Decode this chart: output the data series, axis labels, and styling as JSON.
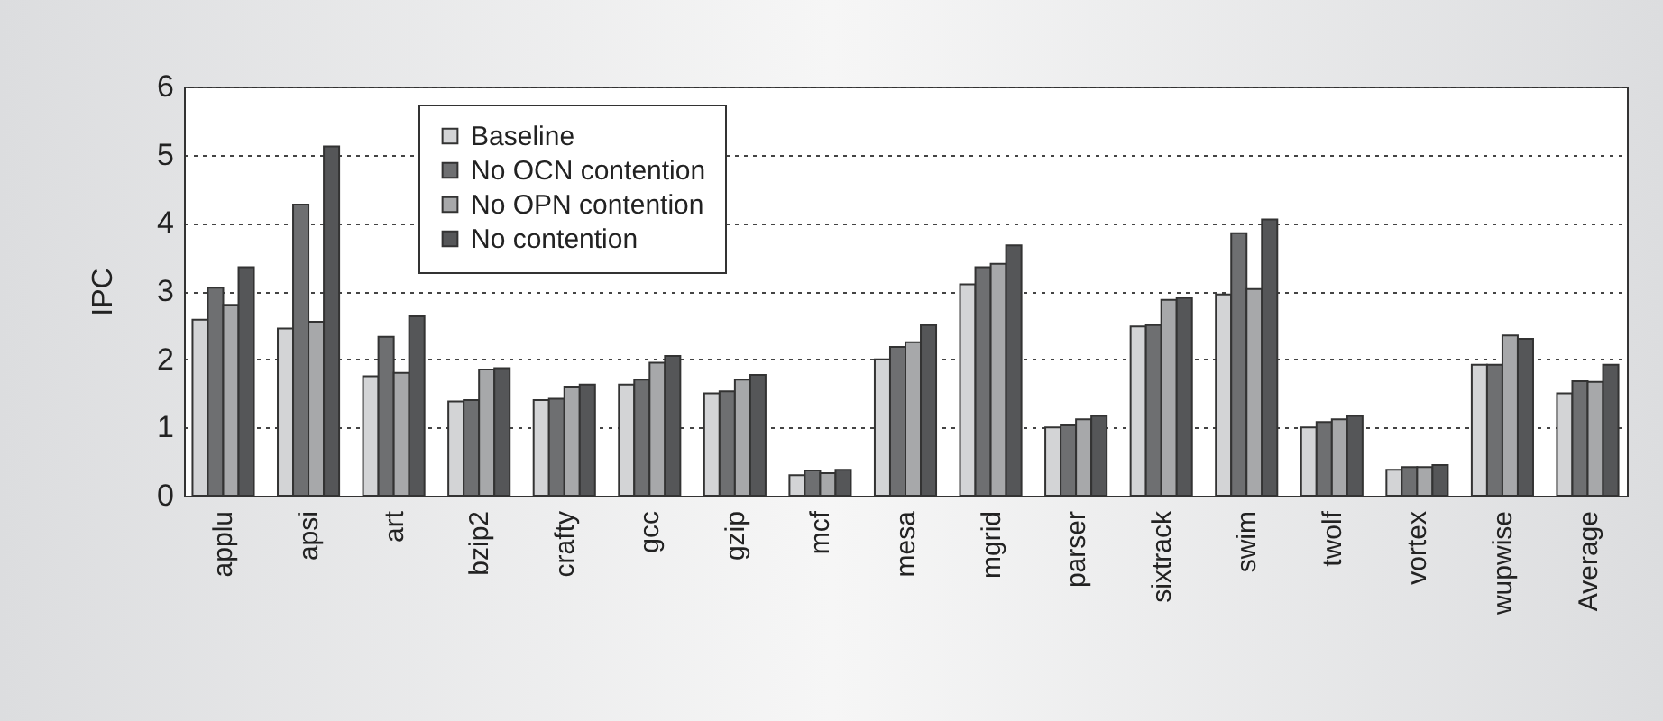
{
  "chart_data": {
    "type": "bar",
    "ylabel": "IPC",
    "categories": [
      "applu",
      "apsi",
      "art",
      "bzip2",
      "crafty",
      "gcc",
      "gzip",
      "mcf",
      "mesa",
      "mgrid",
      "parser",
      "sixtrack",
      "swim",
      "twolf",
      "vortex",
      "wupwise",
      "Average"
    ],
    "series": [
      {
        "name": "Baseline",
        "color": "#d3d4d6",
        "values": [
          2.58,
          2.45,
          1.75,
          1.38,
          1.4,
          1.63,
          1.5,
          0.3,
          2.0,
          3.1,
          1.0,
          2.48,
          2.95,
          1.0,
          0.38,
          1.92,
          1.5
        ]
      },
      {
        "name": "No OCN contention",
        "color": "#6e6f71",
        "values": [
          3.05,
          4.27,
          2.33,
          1.4,
          1.42,
          1.7,
          1.53,
          0.37,
          2.18,
          3.35,
          1.03,
          2.5,
          3.85,
          1.08,
          0.42,
          1.92,
          1.68
        ]
      },
      {
        "name": "No OPN contention",
        "color": "#a7a8aa",
        "values": [
          2.8,
          2.55,
          1.8,
          1.85,
          1.6,
          1.95,
          1.7,
          0.33,
          2.25,
          3.4,
          1.12,
          2.87,
          3.03,
          1.12,
          0.42,
          2.35,
          1.67
        ]
      },
      {
        "name": "No contention",
        "color": "#555658",
        "values": [
          3.35,
          5.12,
          2.63,
          1.87,
          1.63,
          2.05,
          1.77,
          0.38,
          2.5,
          3.67,
          1.17,
          2.9,
          4.05,
          1.17,
          0.45,
          2.3,
          1.92
        ]
      }
    ],
    "ylim": [
      0,
      6
    ],
    "yticks": [
      0,
      1,
      2,
      3,
      4,
      5,
      6
    ],
    "grid": "y",
    "legend": "top left"
  }
}
